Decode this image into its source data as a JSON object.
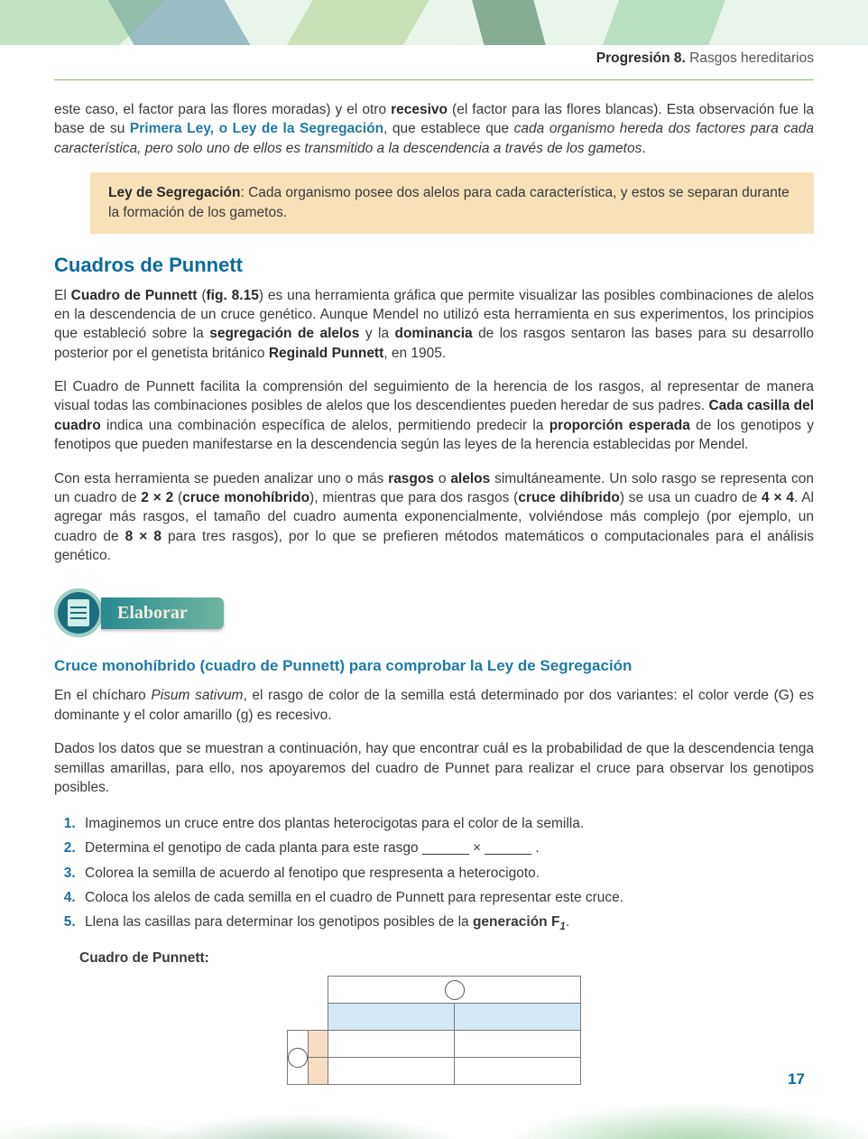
{
  "header": {
    "bold": "Progresión 8.",
    "rest": " Rasgos hereditarios"
  },
  "p1": {
    "pre": "este caso, el factor para las flores moradas) y el otro ",
    "b1": "recesivo",
    "mid1": " (el factor para las flores blancas). Esta observación fue la base de su ",
    "link": "Primera Ley, o Ley de la Segregación",
    "mid2": ", que establece que ",
    "ital": "cada organismo hereda dos factores para cada característica, pero solo uno de ellos es transmitido a la descendencia a través de los gametos",
    "end": "."
  },
  "callout1": {
    "b": "Ley de Segregación",
    "rest": ": Cada organismo posee dos alelos para cada característica, y estos se separan durante la formación de los gametos."
  },
  "h2": "Cuadros de Punnett",
  "p2": {
    "t1": "El ",
    "b1": "Cuadro de Punnett",
    "t2": " (",
    "b2": "fig. 8.15",
    "t3": ") es una herramienta gráfica que permite visualizar las posibles combinaciones de alelos en la descendencia de un cruce genético. Aunque Mendel no utilizó esta herramienta en sus experimentos, los principios que estableció sobre la ",
    "b3": "segregación de alelos",
    "t4": " y la ",
    "b4": "dominancia",
    "t5": " de los rasgos sentaron las bases para su desarrollo posterior por el genetista británico ",
    "b5": "Reginald Punnett",
    "t6": ", en 1905."
  },
  "p3": {
    "t1": "El Cuadro de Punnett facilita la comprensión del seguimiento de la herencia de los rasgos, al representar de manera visual todas las combinaciones posibles de alelos que los descendientes pueden heredar de sus padres. ",
    "b1": "Cada casilla del cuadro",
    "t2": " indica una combinación específica de alelos, permitiendo predecir la ",
    "b2": "proporción esperada",
    "t3": " de los genotipos y fenotipos que pueden manifestarse en la descendencia según las leyes de la herencia establecidas por Mendel."
  },
  "p4": {
    "t1": "Con esta herramienta se pueden analizar uno o más ",
    "b1": "rasgos",
    "t2": " o ",
    "b2": "alelos",
    "t3": " simultáneamente. Un solo rasgo se representa con un cuadro de ",
    "b3": "2 × 2",
    "t4": " (",
    "b4": "cruce monohíbrido",
    "t5": "), mientras que para dos rasgos (",
    "b5": "cruce dihíbrido",
    "t6": ") se usa un cuadro de ",
    "b6": "4 × 4",
    "t7": ". Al agregar más rasgos, el tamaño del cuadro aumenta exponencialmente, volviéndose más complejo (por ejemplo, un cuadro de ",
    "b7": "8 × 8",
    "t8": " para tres rasgos), por lo que se prefieren métodos matemáticos o computacionales para el análisis genético."
  },
  "elaborate": "Elaborar",
  "h3": "Cruce monohíbrido (cuadro de Punnett) para comprobar la Ley de Segregación",
  "p5": {
    "t1": "En el chícharo ",
    "i1": "Pisum sativum",
    "t2": ", el rasgo de color de la semilla está determinado por dos variantes: el color verde (G) es dominante y el color amarillo (g) es recesivo."
  },
  "p6": "Dados los datos que se muestran a continuación, hay que encontrar cuál es la probabilidad de que la descendencia tenga semillas amarillas, para ello, nos apoyaremos del cuadro de Punnet para realizar el cruce para observar los genotipos posibles.",
  "steps": [
    "Imaginemos un cruce entre dos plantas heterocigotas para el color de la semilla.",
    "Determina el genotipo de cada planta para este rasgo ______ × ______ .",
    "Colorea la semilla de acuerdo al fenotipo que respresenta a heterocigoto.",
    "Coloca los alelos de cada semilla en el cuadro de Punnett para representar este cruce."
  ],
  "step5": {
    "t1": "Llena las casillas para determinar los genotipos posibles de la ",
    "b1": "generación F",
    "sub": "1",
    "t2": "."
  },
  "tableTitle": "Cuadro de Punnett:",
  "punnett": {
    "header_bg": "#d4e8f5",
    "side_bg": "#f6ddc4",
    "border_color": "#7a7a7a",
    "cell_bg": "#ffffff",
    "cols": 2,
    "rows": 2
  },
  "pageNumber": "17"
}
